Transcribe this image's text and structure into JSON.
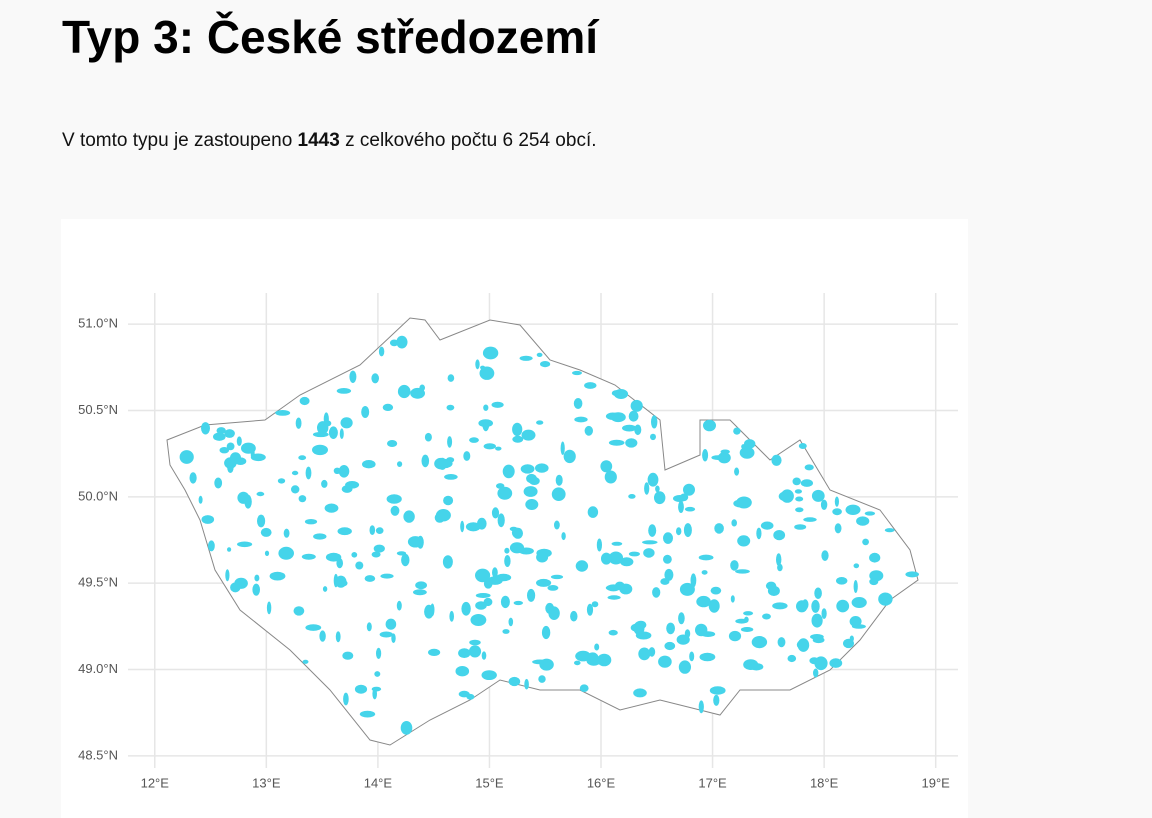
{
  "header": {
    "title": "Typ 3: České středozemí"
  },
  "paragraph": {
    "before": "V tomto typu je zastoupeno",
    "count": "1443",
    "after": "z celkového počtu 6 254 obcí."
  },
  "map": {
    "xlim": [
      11.76,
      19.2
    ],
    "ylim": [
      48.43,
      51.18
    ],
    "xticks": [
      {
        "value": 12,
        "label": "12°E"
      },
      {
        "value": 13,
        "label": "13°E"
      },
      {
        "value": 14,
        "label": "14°E"
      },
      {
        "value": 15,
        "label": "15°E"
      },
      {
        "value": 16,
        "label": "16°E"
      },
      {
        "value": 17,
        "label": "17°E"
      },
      {
        "value": 18,
        "label": "18°E"
      },
      {
        "value": 19,
        "label": "19°E"
      }
    ],
    "yticks": [
      {
        "value": 48.5,
        "label": "48.5°N"
      },
      {
        "value": 49.0,
        "label": "49.0°N"
      },
      {
        "value": 49.5,
        "label": "49.5°N"
      },
      {
        "value": 50.0,
        "label": "50.0°N"
      },
      {
        "value": 50.5,
        "label": "50.5°N"
      },
      {
        "value": 51.0,
        "label": "51.0°N"
      }
    ],
    "grid": true,
    "highlight_color": "#45d4ea"
  }
}
